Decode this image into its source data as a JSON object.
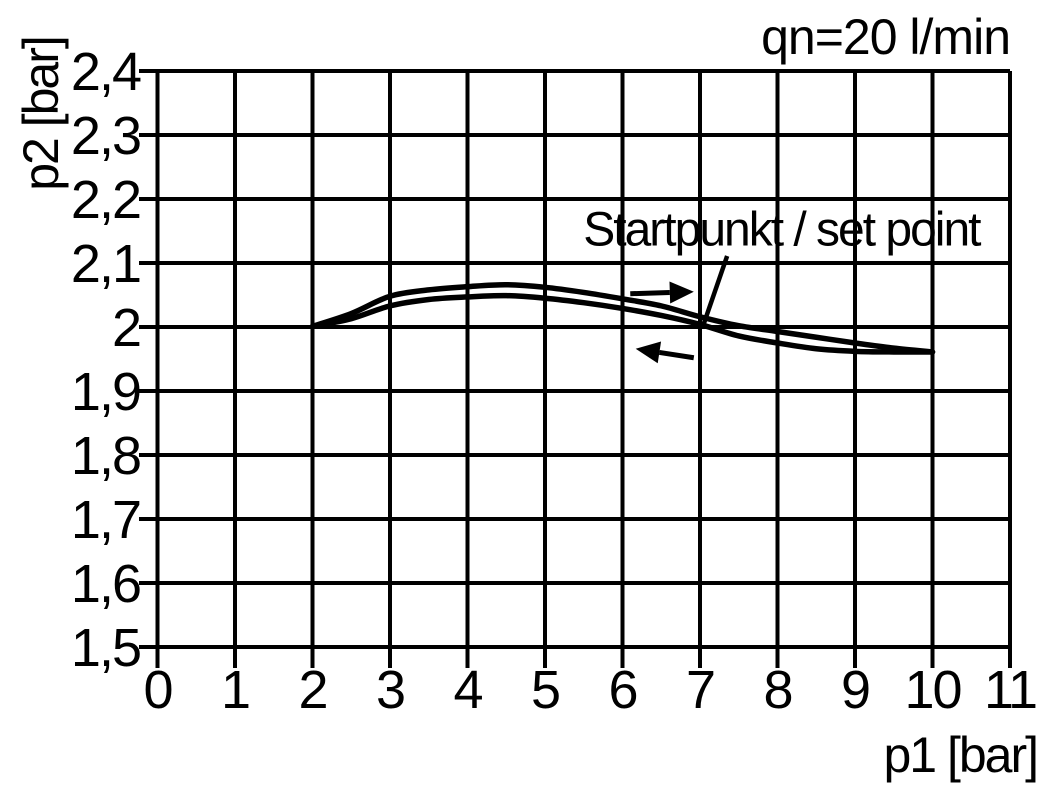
{
  "colors": {
    "background": "#ffffff",
    "foreground": "#000000"
  },
  "chart_data": {
    "type": "line",
    "title": "",
    "flow_label": "qn=20 l/min",
    "xlabel": "p1 [bar]",
    "ylabel": "p2 [bar]",
    "xlim": [
      0,
      11
    ],
    "ylim": [
      1.5,
      2.4
    ],
    "grid": true,
    "legend_position": "none",
    "x_ticks": {
      "values": [
        0,
        1,
        2,
        3,
        4,
        5,
        6,
        7,
        8,
        9,
        10,
        11
      ],
      "labels": [
        "0",
        "1",
        "2",
        "3",
        "4",
        "5",
        "6",
        "7",
        "8",
        "9",
        "10",
        "11"
      ]
    },
    "y_ticks": {
      "values": [
        1.5,
        1.6,
        1.7,
        1.8,
        1.9,
        2.0,
        2.1,
        2.2,
        2.3,
        2.4
      ],
      "labels": [
        "1,5",
        "1,6",
        "1,7",
        "1,8",
        "1,9",
        "2",
        "2,1",
        "2,2",
        "2,3",
        "2,4"
      ]
    },
    "series": [
      {
        "name": "upper-branch-increasing-p1",
        "x": [
          2.0,
          2.5,
          3.0,
          3.5,
          4.0,
          4.5,
          5.0,
          5.5,
          6.0,
          6.5,
          7.0,
          7.5,
          8.0,
          8.5,
          9.0,
          9.5,
          10.0
        ],
        "y": [
          2.001,
          2.021,
          2.048,
          2.058,
          2.063,
          2.066,
          2.062,
          2.054,
          2.044,
          2.033,
          2.016,
          2.002,
          1.993,
          1.984,
          1.975,
          1.967,
          1.961
        ]
      },
      {
        "name": "lower-branch-decreasing-p1",
        "x": [
          2.0,
          2.5,
          3.0,
          3.5,
          4.0,
          4.5,
          5.0,
          5.5,
          6.0,
          6.5,
          7.0,
          7.5,
          8.0,
          8.5,
          9.0,
          9.5,
          10.0
        ],
        "y": [
          2.001,
          2.013,
          2.033,
          2.043,
          2.047,
          2.049,
          2.045,
          2.038,
          2.029,
          2.018,
          2.004,
          1.986,
          1.975,
          1.966,
          1.962,
          1.961,
          1.961
        ]
      }
    ],
    "annotations": {
      "set_point": {
        "label": "Startpunkt / set point",
        "label_baseline_pos": [
          8.05,
          2.127
        ],
        "leader_from": [
          7.35,
          2.111
        ],
        "leader_to": [
          7.04,
          2.002
        ]
      },
      "direction_arrows": [
        {
          "name": "forward-direction-arrow",
          "direction": "right",
          "tail": [
            6.1,
            2.052
          ],
          "tip": [
            6.92,
            2.055
          ]
        },
        {
          "name": "return-direction-arrow",
          "direction": "left",
          "tail": [
            6.92,
            1.952
          ],
          "tip": [
            6.17,
            1.966
          ]
        }
      ]
    }
  }
}
